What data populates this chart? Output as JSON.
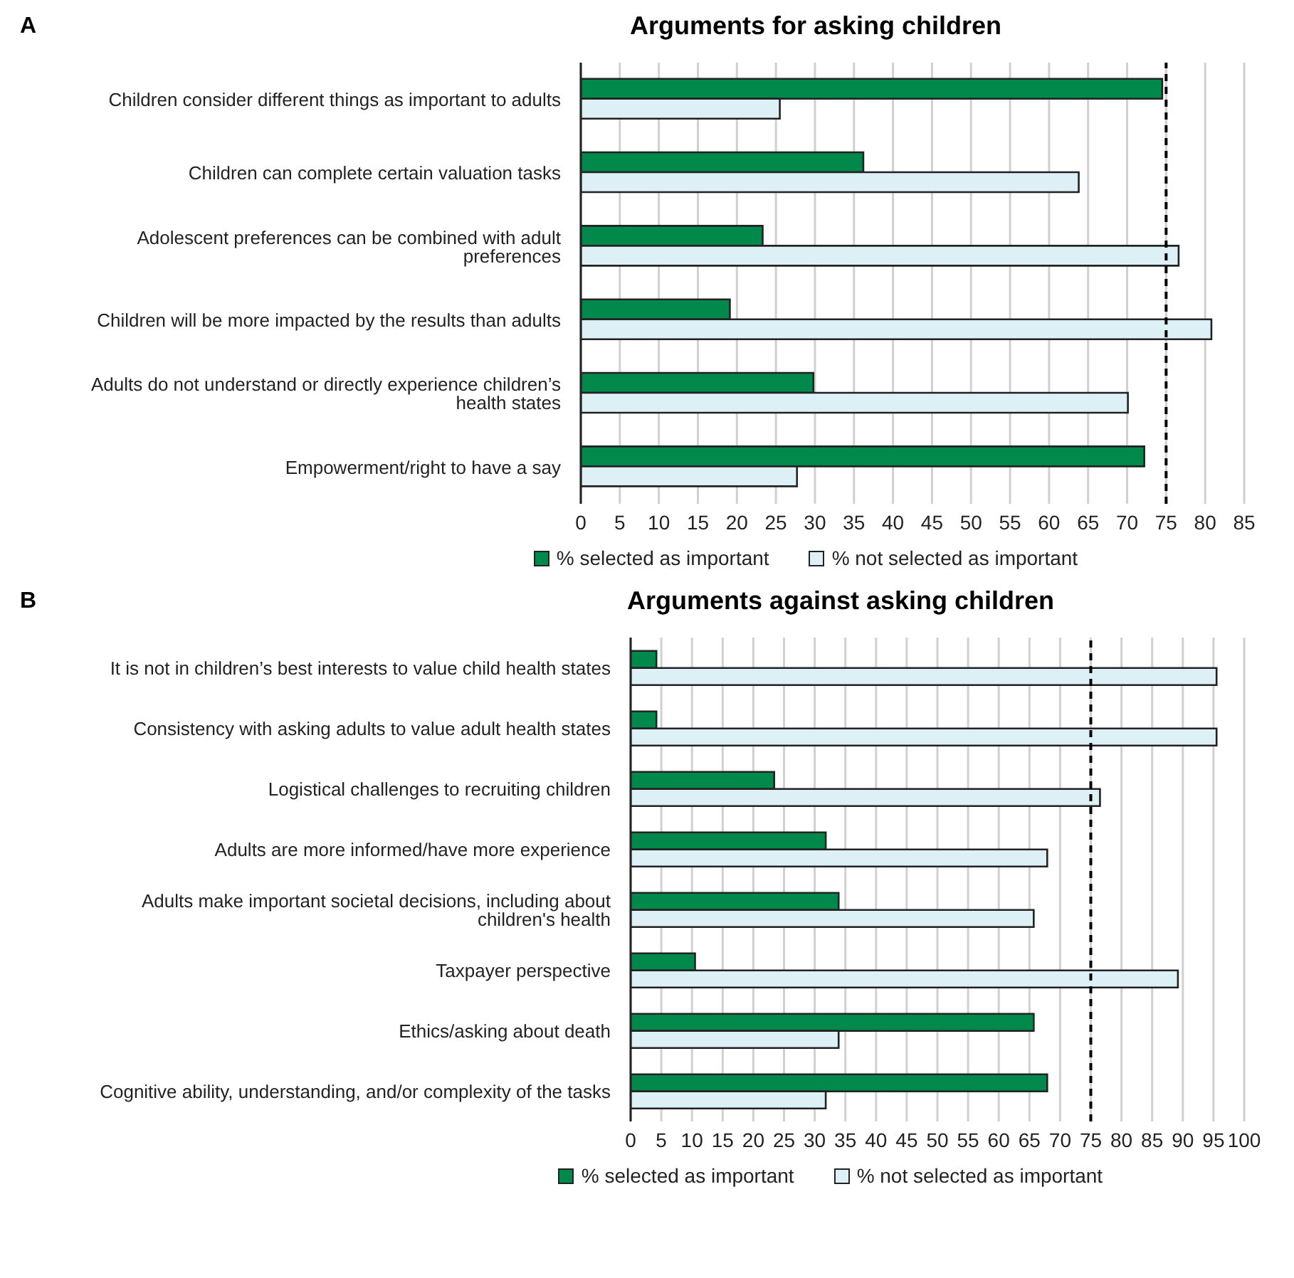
{
  "chart_data": [
    {
      "type": "bar",
      "orientation": "horizontal",
      "title": "Arguments for asking children",
      "annotations": [
        "A"
      ],
      "categories": [
        "Children consider different things as important to adults",
        "Children can complete certain valuation tasks",
        "Adolescent preferences can be combined with adult preferences",
        "Children will be more impacted by the results than adults",
        "Adults do not understand or directly experience children’s health states",
        "Empowerment/right to have a say"
      ],
      "series": [
        {
          "name": "% selected as important",
          "color": "#00894a",
          "values": [
            74.5,
            36.2,
            23.3,
            19.1,
            29.8,
            72.2
          ]
        },
        {
          "name": "% not selected as important",
          "color": "#ddf0f5",
          "values": [
            25.5,
            63.8,
            76.6,
            80.8,
            70.1,
            27.7
          ]
        }
      ],
      "xlim": [
        0,
        85
      ],
      "xticks": [
        0,
        5,
        10,
        15,
        20,
        25,
        30,
        35,
        40,
        45,
        50,
        55,
        60,
        65,
        70,
        75,
        80,
        85
      ],
      "grid": "x",
      "legend": "bottom",
      "ref_lines": [
        {
          "axis": "x",
          "value": 75,
          "color": "#000000",
          "line_style": "dashed"
        }
      ]
    },
    {
      "type": "bar",
      "orientation": "horizontal",
      "title": "Arguments against asking children",
      "annotations": [
        "B"
      ],
      "categories": [
        "It is not in children’s best interests to value child health states",
        "Consistency with asking adults to value adult health states",
        "Logistical challenges to recruiting children",
        "Adults are more informed/have more experience",
        "Adults make important societal decisions, including about children's health",
        "Taxpayer perspective",
        "Ethics/asking about death",
        "Cognitive ability, understanding, and/or complexity of the tasks"
      ],
      "series": [
        {
          "name": "% selected as important",
          "color": "#00894a",
          "values": [
            4.2,
            4.2,
            23.4,
            31.8,
            33.9,
            10.5,
            65.7,
            67.9
          ]
        },
        {
          "name": "% not selected as important",
          "color": "#ddf0f5",
          "values": [
            95.5,
            95.5,
            76.5,
            67.9,
            65.7,
            89.2,
            33.9,
            31.8
          ]
        }
      ],
      "xlim": [
        0,
        100
      ],
      "xticks": [
        0,
        5,
        10,
        15,
        20,
        25,
        30,
        35,
        40,
        45,
        50,
        55,
        60,
        65,
        70,
        75,
        80,
        85,
        90,
        95,
        100
      ],
      "grid": "x",
      "legend": "bottom",
      "ref_lines": [
        {
          "axis": "x",
          "value": 75,
          "color": "#000000",
          "line_style": "dashed"
        }
      ]
    }
  ]
}
